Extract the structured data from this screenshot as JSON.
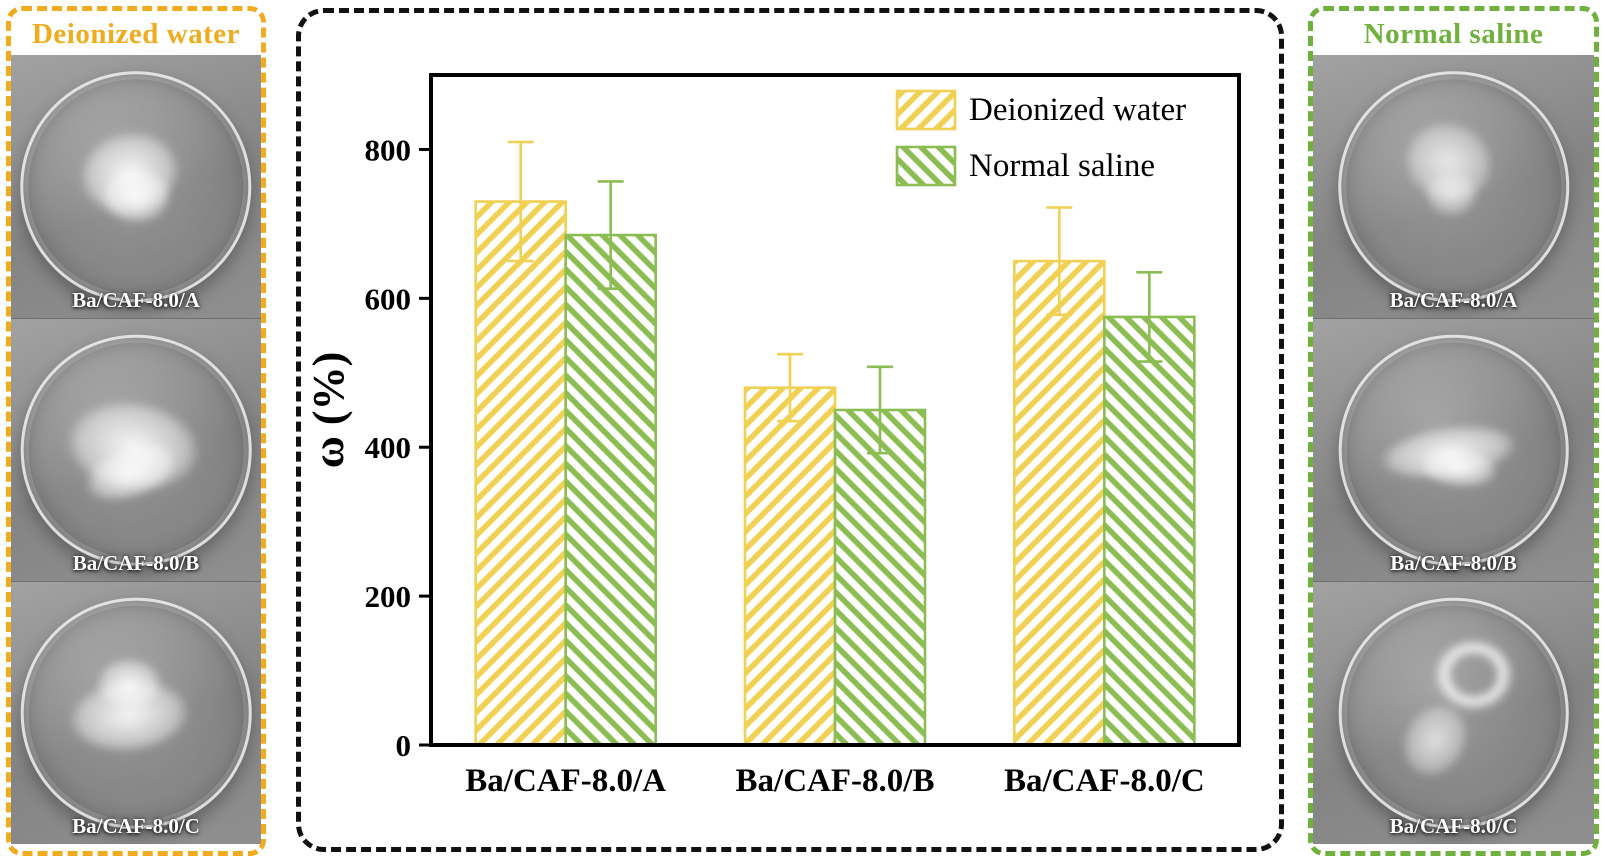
{
  "figure": {
    "left_panel": {
      "title": "Deionized water",
      "accent_color": "#f0ac1e",
      "photos": [
        {
          "label": "Ba/CAF-8.0/A"
        },
        {
          "label": "Ba/CAF-8.0/B"
        },
        {
          "label": "Ba/CAF-8.0/C"
        }
      ]
    },
    "right_panel": {
      "title": "Normal saline",
      "accent_color": "#6fb13c",
      "photos": [
        {
          "label": "Ba/CAF-8.0/A"
        },
        {
          "label": "Ba/CAF-8.0/B"
        },
        {
          "label": "Ba/CAF-8.0/C"
        }
      ]
    }
  },
  "chart_data": {
    "type": "bar",
    "title": "",
    "xlabel": "",
    "ylabel": "ω (%)",
    "categories": [
      "Ba/CAF-8.0/A",
      "Ba/CAF-8.0/B",
      "Ba/CAF-8.0/C"
    ],
    "series": [
      {
        "name": "Deionized water",
        "color": "#f0d153",
        "hatch": "/",
        "values": [
          730,
          480,
          650
        ],
        "errors": [
          80,
          45,
          72
        ]
      },
      {
        "name": "Normal saline",
        "color": "#8cbd52",
        "hatch": "\\",
        "values": [
          685,
          450,
          575
        ],
        "errors": [
          72,
          58,
          60
        ]
      }
    ],
    "ylim": [
      0,
      900
    ],
    "yticks": [
      0,
      200,
      400,
      600,
      800
    ],
    "grid": false,
    "legend_position": "top-right",
    "axis_color": "#000000"
  }
}
